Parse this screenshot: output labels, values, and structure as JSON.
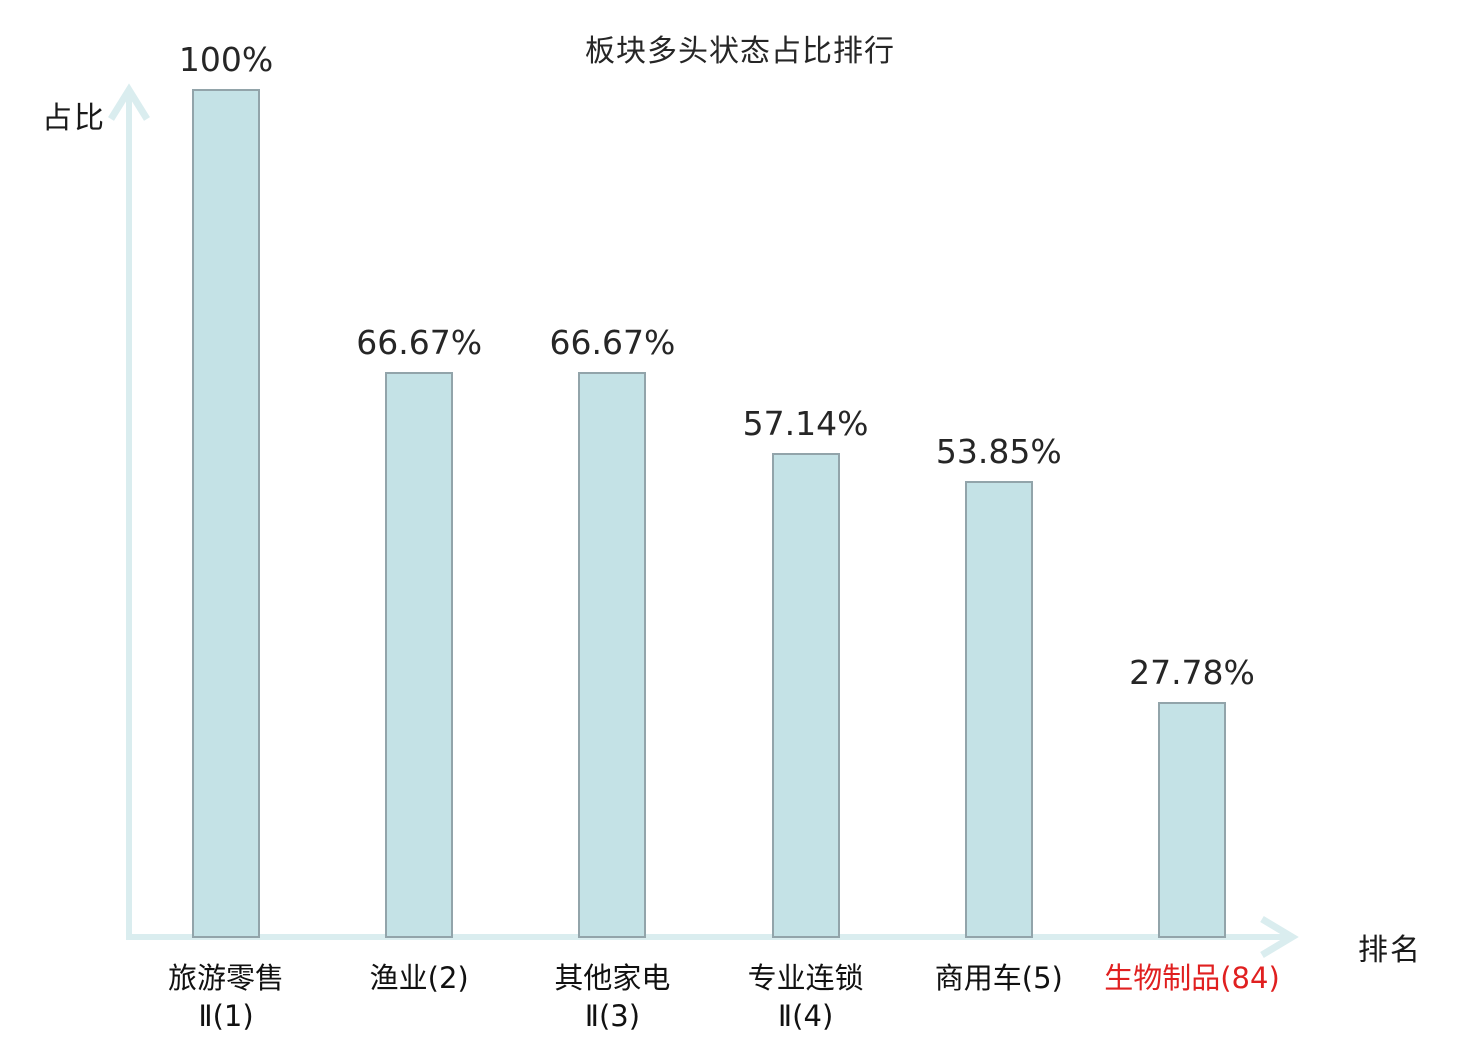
{
  "chart_data": {
    "type": "bar",
    "title": "板块多头状态占比排行",
    "xlabel": "排名",
    "ylabel": "占比",
    "ylim": [
      0,
      100
    ],
    "grid": false,
    "legend": null,
    "categories": [
      "旅游零售Ⅱ(1)",
      "渔业(2)",
      "其他家电Ⅱ(3)",
      "专业连锁Ⅱ(4)",
      "商用车(5)",
      "生物制品(84)"
    ],
    "category_label_lines": [
      [
        "旅游零售",
        "Ⅱ(1)"
      ],
      [
        "渔业(2)"
      ],
      [
        "其他家电",
        "Ⅱ(3)"
      ],
      [
        "专业连锁",
        "Ⅱ(4)"
      ],
      [
        "商用车(5)"
      ],
      [
        "生物制品(84)"
      ]
    ],
    "values": [
      100,
      66.67,
      66.67,
      57.14,
      53.85,
      27.78
    ],
    "value_labels": [
      "100%",
      "66.67%",
      "66.67%",
      "57.14%",
      "53.85%",
      "27.78%"
    ],
    "highlighted_category_index": 5,
    "colors": {
      "bar_fill": "#c4e2e6",
      "bar_border": "#92a4aa",
      "axis": "#daedef",
      "text": "#262626",
      "highlight": "#e02020"
    }
  }
}
